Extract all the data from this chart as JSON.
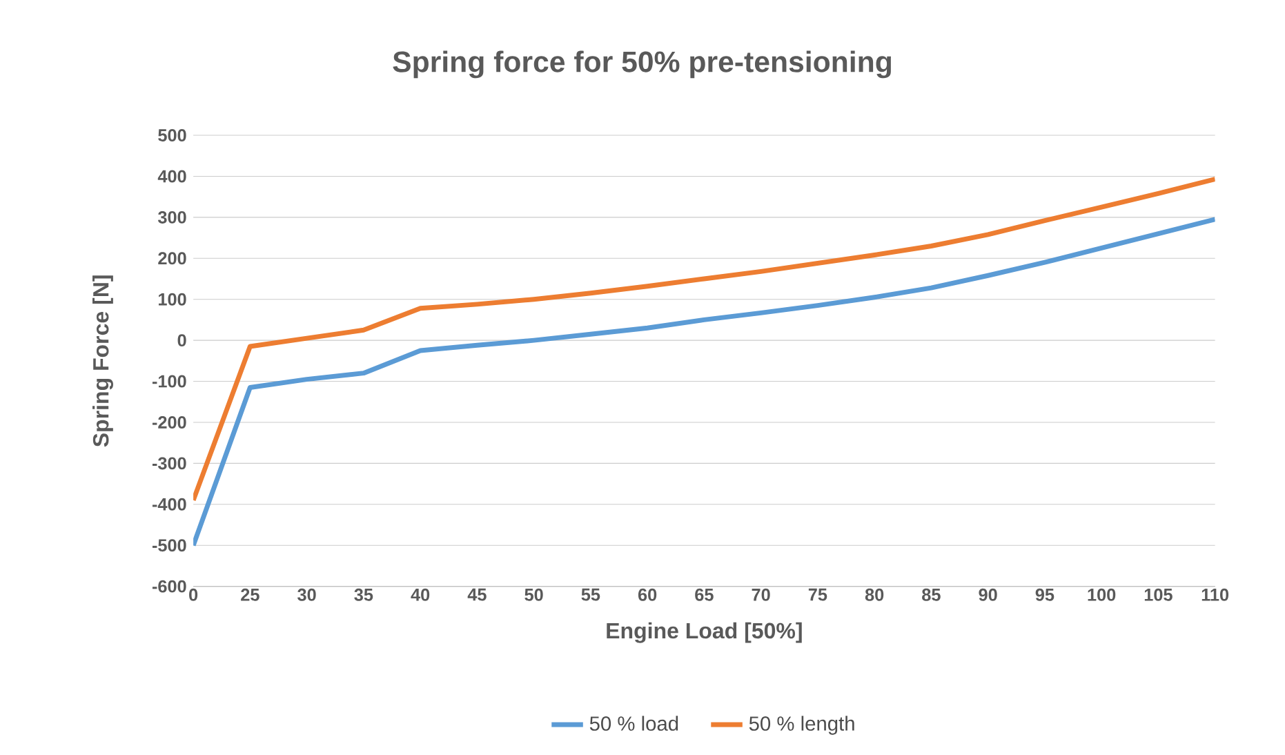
{
  "chart_data": {
    "type": "line",
    "title": "Spring force for 50% pre-tensioning",
    "xlabel": "Engine Load [50%]",
    "ylabel": "Spring Force [N]",
    "categories": [
      "0",
      "25",
      "30",
      "35",
      "40",
      "45",
      "50",
      "55",
      "60",
      "65",
      "70",
      "75",
      "80",
      "85",
      "90",
      "95",
      "100",
      "105",
      "110"
    ],
    "series": [
      {
        "name": "50 % load",
        "color": "#5b9bd5",
        "values": [
          -500,
          -115,
          -95,
          -80,
          -25,
          -12,
          0,
          15,
          30,
          50,
          67,
          85,
          105,
          128,
          158,
          190,
          225,
          260,
          295
        ]
      },
      {
        "name": "50 % length",
        "color": "#ed7d31",
        "values": [
          -390,
          -15,
          5,
          25,
          78,
          88,
          100,
          115,
          132,
          150,
          168,
          188,
          208,
          230,
          258,
          292,
          325,
          358,
          393
        ]
      }
    ],
    "ylim": [
      -600,
      500
    ],
    "yticks": [
      -600,
      -500,
      -400,
      -300,
      -200,
      -100,
      0,
      100,
      200,
      300,
      400,
      500
    ],
    "grid": "y",
    "legend": "bottom",
    "marker": "none",
    "line_style": "solid"
  }
}
